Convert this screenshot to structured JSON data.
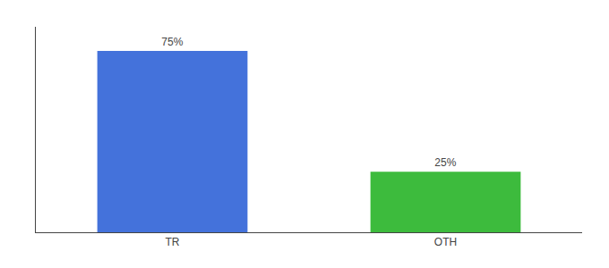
{
  "chart_data": {
    "type": "bar",
    "categories": [
      "TR",
      "OTH"
    ],
    "values": [
      75,
      25
    ],
    "value_labels": [
      "75%",
      "25%"
    ],
    "data_labels": true,
    "colors": [
      "#4472db",
      "#3dbb3d"
    ],
    "ylim": [
      0,
      85
    ],
    "tick_labels": "x",
    "grid": false
  }
}
